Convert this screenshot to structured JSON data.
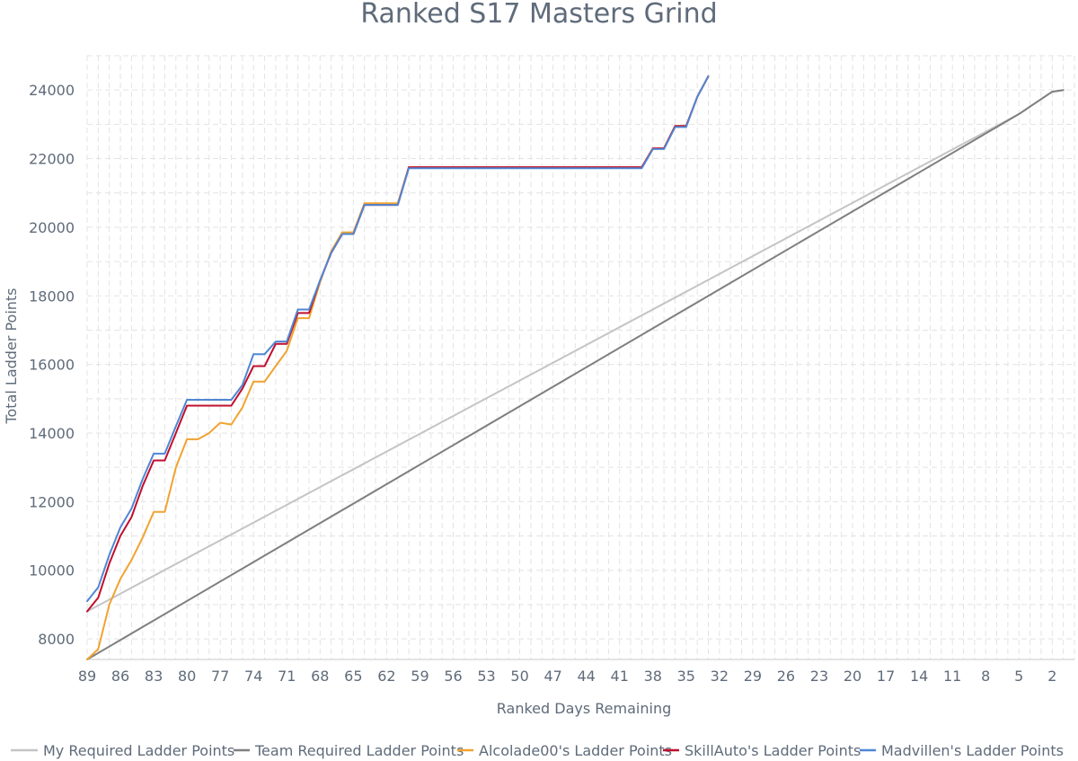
{
  "chart_data": {
    "type": "line",
    "title": "Ranked S17 Masters Grind",
    "xlabel": "Ranked Days Remaining",
    "ylabel": "Total Ladder Points",
    "x_reversed": true,
    "xlim": [
      89,
      0
    ],
    "ylim": [
      7400,
      25000
    ],
    "x_ticks": [
      89,
      86,
      83,
      80,
      77,
      74,
      71,
      68,
      65,
      62,
      59,
      56,
      53,
      50,
      47,
      44,
      41,
      38,
      35,
      32,
      29,
      26,
      23,
      20,
      17,
      14,
      11,
      8,
      5,
      2
    ],
    "y_ticks": [
      8000,
      10000,
      12000,
      14000,
      16000,
      18000,
      20000,
      22000,
      24000
    ],
    "grid": true,
    "legend_position": "bottom",
    "series": [
      {
        "name": "My Required Ladder Points",
        "color": "#c4c4c4",
        "points": [
          [
            89,
            8800
          ],
          [
            5,
            23300
          ],
          [
            2,
            23950
          ],
          [
            1,
            24000
          ]
        ]
      },
      {
        "name": "Team Required Ladder Points",
        "color": "#7f7f7f",
        "points": [
          [
            89,
            7400
          ],
          [
            5,
            23300
          ],
          [
            2,
            23950
          ],
          [
            1,
            24000
          ]
        ]
      },
      {
        "name": "Alcolade00's Ladder Points",
        "color": "#f0a330",
        "points": [
          [
            89,
            7400
          ],
          [
            88,
            7700
          ],
          [
            87,
            9000
          ],
          [
            86,
            9750
          ],
          [
            85,
            10300
          ],
          [
            84,
            10950
          ],
          [
            83,
            11700
          ],
          [
            82,
            11700
          ],
          [
            81,
            13000
          ],
          [
            80,
            13820
          ],
          [
            79,
            13820
          ],
          [
            78,
            14000
          ],
          [
            77,
            14300
          ],
          [
            76,
            14250
          ],
          [
            75,
            14750
          ],
          [
            74,
            15500
          ],
          [
            73,
            15500
          ],
          [
            72,
            15950
          ],
          [
            71,
            16400
          ],
          [
            70,
            17350
          ],
          [
            69,
            17350
          ],
          [
            68,
            18400
          ],
          [
            67,
            19300
          ],
          [
            66,
            19850
          ],
          [
            65,
            19850
          ],
          [
            64,
            20700
          ],
          [
            63,
            20700
          ],
          [
            62,
            20700
          ],
          [
            61,
            20700
          ],
          [
            60,
            21750
          ],
          [
            39,
            21750
          ],
          [
            38,
            22300
          ],
          [
            37,
            22300
          ],
          [
            36,
            22950
          ],
          [
            35,
            22950
          ],
          [
            34,
            23800
          ],
          [
            33,
            24400
          ]
        ]
      },
      {
        "name": "SkillAuto's Ladder Points",
        "color": "#c00f2d",
        "points": [
          [
            89,
            8800
          ],
          [
            88,
            9200
          ],
          [
            87,
            10200
          ],
          [
            86,
            11000
          ],
          [
            85,
            11550
          ],
          [
            84,
            12450
          ],
          [
            83,
            13200
          ],
          [
            82,
            13200
          ],
          [
            81,
            14000
          ],
          [
            80,
            14800
          ],
          [
            79,
            14800
          ],
          [
            78,
            14800
          ],
          [
            77,
            14800
          ],
          [
            76,
            14800
          ],
          [
            75,
            15300
          ],
          [
            74,
            15950
          ],
          [
            73,
            15950
          ],
          [
            72,
            16600
          ],
          [
            71,
            16600
          ],
          [
            70,
            17500
          ],
          [
            69,
            17500
          ],
          [
            68,
            18450
          ],
          [
            67,
            19250
          ],
          [
            66,
            19800
          ],
          [
            65,
            19800
          ],
          [
            64,
            20650
          ],
          [
            63,
            20650
          ],
          [
            62,
            20650
          ],
          [
            61,
            20650
          ],
          [
            60,
            21750
          ],
          [
            39,
            21750
          ],
          [
            38,
            22300
          ],
          [
            37,
            22300
          ],
          [
            36,
            22950
          ],
          [
            35,
            22950
          ],
          [
            34,
            23800
          ],
          [
            33,
            24400
          ]
        ]
      },
      {
        "name": "Madvillen's Ladder Points",
        "color": "#4f86d4",
        "points": [
          [
            89,
            9100
          ],
          [
            88,
            9500
          ],
          [
            87,
            10450
          ],
          [
            86,
            11250
          ],
          [
            85,
            11800
          ],
          [
            84,
            12650
          ],
          [
            83,
            13400
          ],
          [
            82,
            13400
          ],
          [
            81,
            14200
          ],
          [
            80,
            14970
          ],
          [
            79,
            14970
          ],
          [
            78,
            14970
          ],
          [
            77,
            14970
          ],
          [
            76,
            14970
          ],
          [
            75,
            15400
          ],
          [
            74,
            16300
          ],
          [
            73,
            16300
          ],
          [
            72,
            16670
          ],
          [
            71,
            16670
          ],
          [
            70,
            17600
          ],
          [
            69,
            17600
          ],
          [
            68,
            18450
          ],
          [
            67,
            19250
          ],
          [
            66,
            19800
          ],
          [
            65,
            19800
          ],
          [
            64,
            20650
          ],
          [
            63,
            20650
          ],
          [
            62,
            20650
          ],
          [
            61,
            20650
          ],
          [
            60,
            21720
          ],
          [
            39,
            21720
          ],
          [
            38,
            22280
          ],
          [
            37,
            22280
          ],
          [
            36,
            22920
          ],
          [
            35,
            22920
          ],
          [
            34,
            23800
          ],
          [
            33,
            24400
          ]
        ]
      }
    ]
  }
}
